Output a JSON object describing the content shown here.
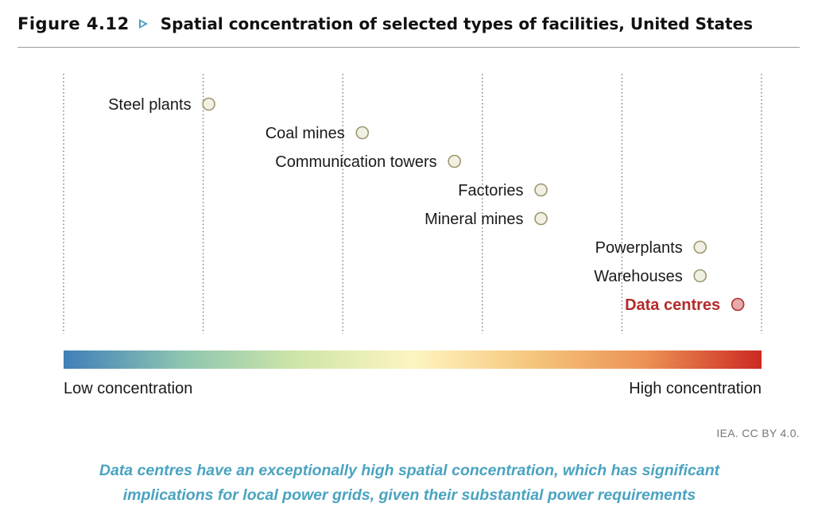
{
  "figure": {
    "label": "Figure 4.12",
    "title": "Spatial concentration of selected types of facilities, United States"
  },
  "chart_data": {
    "type": "scatter",
    "title": "Spatial concentration of selected types of facilities, United States",
    "x_scale": "ordinal concentration, low to high",
    "x_range": [
      0,
      5
    ],
    "grid": "vertical dotted lines",
    "colorbar": {
      "low_label": "Low concentration",
      "high_label": "High concentration",
      "colors": [
        "#3f7fb8",
        "#8cc4b0",
        "#cfe5a8",
        "#fdf5c0",
        "#f6c77e",
        "#ec9255",
        "#cc2a22"
      ]
    },
    "points": [
      {
        "label": "Steel plants",
        "x": 1.04,
        "highlight": false
      },
      {
        "label": "Coal mines",
        "x": 2.14,
        "highlight": false
      },
      {
        "label": "Communication towers",
        "x": 2.8,
        "highlight": false
      },
      {
        "label": "Factories",
        "x": 3.42,
        "highlight": false
      },
      {
        "label": "Mineral mines",
        "x": 3.42,
        "highlight": false
      },
      {
        "label": "Powerplants",
        "x": 4.56,
        "highlight": false
      },
      {
        "label": "Warehouses",
        "x": 4.56,
        "highlight": false
      },
      {
        "label": "Data centres",
        "x": 4.83,
        "highlight": true
      }
    ],
    "marker_color": "#f2f0e3",
    "marker_edge": "#9c9870",
    "highlight_color": "#e7a9a9",
    "highlight_edge": "#b03030",
    "highlight_text_color": "#b52a2a"
  },
  "credit": "IEA. CC BY 4.0.",
  "caption": {
    "line1": "Data centres have an exceptionally high spatial concentration, which has significant",
    "line2": "implications for local power grids, given their substantial power requirements"
  }
}
